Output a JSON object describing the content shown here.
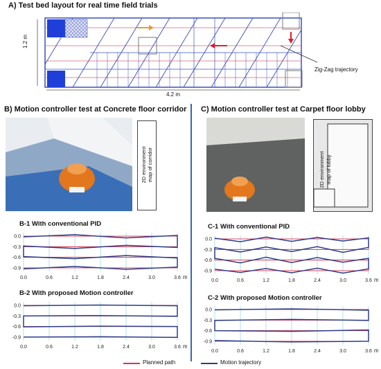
{
  "sectionA": {
    "title": "A) Test bed layout for real time field trials",
    "height_label": "1.2 m",
    "width_label": "4.2 m",
    "zigzag_label": "Zig-Zag trajectory"
  },
  "sectionB": {
    "title": "B) Motion controller test at Concrete floor corridor",
    "map_label_1": "2D environment",
    "map_label_2": "map of corridor"
  },
  "sectionC": {
    "title": "C) Motion controller test at Carpet floor lobby",
    "map_label_1": "2D environment",
    "map_label_2": "map of lobby"
  },
  "plots": {
    "b1_title": "B-1 With conventional PID",
    "b2_title": "B-2 With proposed Motion controller",
    "c1_title": "C-1 With conventional PID",
    "c2_title": "C-2 With proposed Motion controller",
    "y_ticks": [
      "0.0",
      "-0.3",
      "-0.6",
      "-0.9"
    ],
    "x_ticks": [
      "0.0",
      "0.6",
      "1.2",
      "1.8",
      "2.4",
      "3.0",
      "3.6"
    ],
    "x_unit": "m"
  },
  "legend": {
    "planned": "Planned path",
    "motion": "Motion trajectory",
    "planned_color": "#d9304a",
    "motion_color": "#2d3b8a"
  },
  "chart_data": [
    {
      "type": "line",
      "title": "B-1 With conventional PID",
      "xlim": [
        0,
        3.6
      ],
      "ylim": [
        -0.9,
        0.0
      ],
      "series": [
        {
          "name": "Planned path",
          "x": [
            0.0,
            3.6,
            3.6,
            0.0,
            0.0,
            3.6,
            3.6,
            0.0
          ],
          "y": [
            0.0,
            0.0,
            -0.3,
            -0.3,
            -0.6,
            -0.6,
            -0.9,
            -0.9
          ]
        },
        {
          "name": "Motion trajectory",
          "x": [
            0.0,
            1.2,
            2.4,
            3.6,
            3.6,
            2.4,
            1.2,
            0.0,
            0.0,
            1.2,
            2.4,
            3.6,
            3.6,
            2.4,
            1.2,
            0.0
          ],
          "y": [
            -0.02,
            0.04,
            -0.05,
            0.02,
            -0.32,
            -0.26,
            -0.35,
            -0.28,
            -0.58,
            -0.64,
            -0.55,
            -0.62,
            -0.88,
            -0.94,
            -0.86,
            -0.93
          ]
        }
      ]
    },
    {
      "type": "line",
      "title": "B-2 With proposed Motion controller",
      "xlim": [
        0,
        3.6
      ],
      "ylim": [
        -0.9,
        0.0
      ],
      "series": [
        {
          "name": "Planned path",
          "x": [
            0.0,
            3.6,
            3.6,
            0.0,
            0.0,
            3.6,
            3.6,
            0.0
          ],
          "y": [
            0.0,
            0.0,
            -0.3,
            -0.3,
            -0.6,
            -0.6,
            -0.9,
            -0.9
          ]
        },
        {
          "name": "Motion trajectory",
          "x": [
            0.0,
            1.8,
            3.6,
            3.6,
            1.8,
            0.0,
            0.0,
            1.8,
            3.6,
            3.6,
            1.8,
            0.0
          ],
          "y": [
            -0.01,
            0.01,
            -0.01,
            -0.31,
            -0.29,
            -0.3,
            -0.61,
            -0.59,
            -0.6,
            -0.91,
            -0.89,
            -0.9
          ]
        }
      ]
    },
    {
      "type": "line",
      "title": "C-1 With conventional PID",
      "xlim": [
        0,
        3.6
      ],
      "ylim": [
        -0.9,
        0.0
      ],
      "series": [
        {
          "name": "Planned path",
          "x": [
            0.0,
            3.6,
            3.6,
            0.0,
            0.0,
            3.6,
            3.6,
            0.0
          ],
          "y": [
            0.0,
            0.0,
            -0.3,
            -0.3,
            -0.6,
            -0.6,
            -0.9,
            -0.9
          ]
        },
        {
          "name": "Motion trajectory",
          "x": [
            0.0,
            0.6,
            1.2,
            1.8,
            2.4,
            3.0,
            3.6,
            3.6,
            3.0,
            2.4,
            1.8,
            1.2,
            0.6,
            0.0,
            0.0,
            0.6,
            1.2,
            1.8,
            2.4,
            3.0,
            3.6,
            3.6,
            3.0,
            2.4,
            1.8,
            1.2,
            0.6,
            0.0
          ],
          "y": [
            0.02,
            -0.08,
            0.05,
            -0.07,
            0.04,
            -0.06,
            0.03,
            -0.24,
            -0.38,
            -0.22,
            -0.36,
            -0.23,
            -0.37,
            -0.25,
            -0.55,
            -0.68,
            -0.52,
            -0.67,
            -0.53,
            -0.66,
            -0.55,
            -0.85,
            -0.97,
            -0.83,
            -0.96,
            -0.84,
            -0.95,
            -0.86
          ]
        }
      ]
    },
    {
      "type": "line",
      "title": "C-2 With proposed Motion controller",
      "xlim": [
        0,
        3.6
      ],
      "ylim": [
        -0.9,
        0.0
      ],
      "series": [
        {
          "name": "Planned path",
          "x": [
            0.0,
            3.6,
            3.6,
            0.0,
            0.0,
            3.6,
            3.6,
            0.0
          ],
          "y": [
            0.0,
            0.0,
            -0.3,
            -0.3,
            -0.6,
            -0.6,
            -0.9,
            -0.9
          ]
        },
        {
          "name": "Motion trajectory",
          "x": [
            0.0,
            1.8,
            3.6,
            3.6,
            1.8,
            0.0,
            0.0,
            1.8,
            3.6,
            3.6,
            1.8,
            0.0
          ],
          "y": [
            -0.01,
            0.02,
            -0.02,
            -0.31,
            -0.28,
            -0.31,
            -0.6,
            -0.62,
            -0.58,
            -0.9,
            -0.92,
            -0.88
          ]
        }
      ]
    }
  ]
}
